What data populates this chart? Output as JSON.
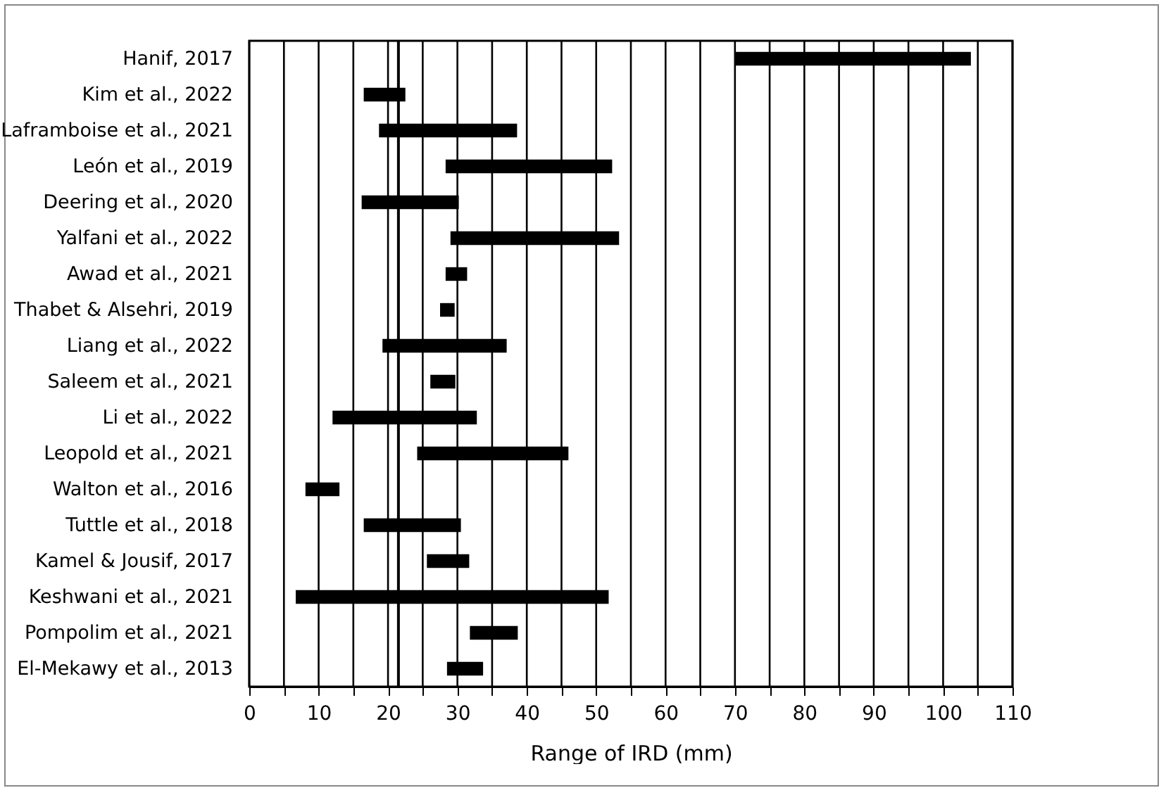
{
  "chart_data": {
    "type": "bar",
    "orientation": "horizontal",
    "xlabel": "Range of IRD (mm)",
    "categories": [
      "Hanif, 2017",
      "Kim et al., 2022",
      "Laframboise et al., 2021",
      "León et al., 2019",
      "Deering et al., 2020",
      "Yalfani et al., 2022",
      "Awad et al., 2021",
      "Thabet & Alsehri, 2019",
      "Liang et al., 2022",
      "Saleem et al., 2021",
      "Li et al., 2022",
      "Leopold et al., 2021",
      "Walton et al., 2016",
      "Tuttle et al., 2018",
      "Kamel & Jousif, 2017",
      "Keshwani et al., 2021",
      "Pompolim et al., 2021",
      "El-Mekawy et al., 2013"
    ],
    "base": [
      70,
      16.5,
      18.7,
      28.3,
      16.2,
      29,
      28.3,
      27.5,
      19.2,
      26.1,
      12,
      24.2,
      8.1,
      16.5,
      25.6,
      6.7,
      31.8,
      28.5
    ],
    "values": [
      34,
      6,
      19.9,
      24,
      14,
      24.3,
      3.1,
      2.1,
      17.9,
      3.6,
      20.8,
      21.8,
      4.9,
      14,
      6.1,
      45.1,
      6.9,
      5.2
    ],
    "color": "#000000",
    "xlim": [
      0,
      110
    ],
    "xticks": [
      0,
      {
        "value": 5,
        "label": null
      },
      10,
      {
        "value": 15,
        "label": null
      },
      20,
      {
        "value": 25,
        "label": null
      },
      30,
      {
        "value": 35,
        "label": null
      },
      40,
      {
        "value": 45,
        "label": null
      },
      50,
      {
        "value": 55,
        "label": null
      },
      60,
      {
        "value": 65,
        "label": null
      },
      70,
      {
        "value": 75,
        "label": null
      },
      80,
      {
        "value": 85,
        "label": null
      },
      90,
      {
        "value": 95,
        "label": null
      },
      100,
      {
        "value": 105,
        "label": null
      },
      110
    ],
    "grid": "x",
    "ref_lines": [
      {
        "axis": "x",
        "value": 21.5,
        "color": "#000000"
      }
    ]
  }
}
